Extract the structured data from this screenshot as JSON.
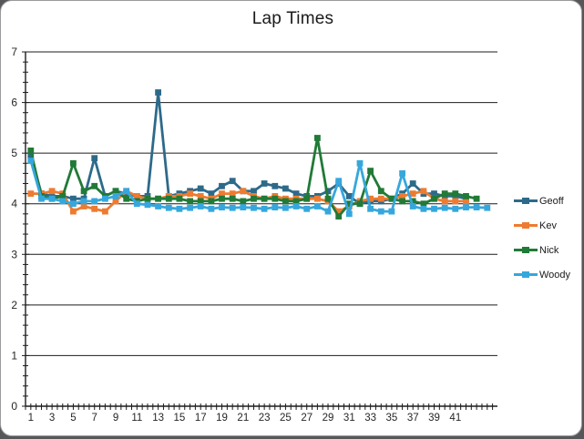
{
  "window": {
    "background_color": "#57575a",
    "card_color": "#ffffff"
  },
  "chart_data": {
    "type": "line",
    "title": "Lap Times",
    "xlabel": "",
    "ylabel": "",
    "ylim": [
      0,
      7
    ],
    "y_tick_labels": [
      "0",
      "1",
      "2",
      "3",
      "4",
      "5",
      "6",
      "7"
    ],
    "y_minor_step": 0.2,
    "x_tick_labels": [
      "1",
      "3",
      "5",
      "7",
      "9",
      "11",
      "13",
      "15",
      "17",
      "19",
      "21",
      "23",
      "25",
      "27",
      "29",
      "31",
      "33",
      "35",
      "37",
      "39",
      "41"
    ],
    "x_categories_max": 44,
    "grid": "horizontal-major",
    "grid_color": "#1c1c1c",
    "axis_color": "#1c1c1c",
    "tick_label_color": "#262626",
    "legend_position": "right",
    "series": [
      {
        "name": "Geoff",
        "color": "#2d6a8a",
        "values": [
          4.95,
          4.2,
          4.15,
          4.15,
          4.1,
          4.1,
          4.9,
          4.15,
          4.25,
          4.2,
          4.15,
          4.15,
          6.2,
          4.15,
          4.2,
          4.25,
          4.3,
          4.2,
          4.35,
          4.45,
          4.25,
          4.25,
          4.4,
          4.35,
          4.3,
          4.2,
          4.15,
          4.15,
          4.25,
          4.4,
          4.15,
          4.0,
          4.05,
          4.05,
          4.1,
          4.2,
          4.4,
          4.2,
          4.2,
          4.15,
          4.15,
          4.1
        ]
      },
      {
        "name": "Kev",
        "color": "#ee7b30",
        "values": [
          4.2,
          4.2,
          4.25,
          4.2,
          3.85,
          3.95,
          3.9,
          3.85,
          4.05,
          4.25,
          4.15,
          4.1,
          4.1,
          4.15,
          4.15,
          4.2,
          4.15,
          4.1,
          4.2,
          4.2,
          4.25,
          4.15,
          4.1,
          4.15,
          4.1,
          4.1,
          4.1,
          4.1,
          4.05,
          3.85,
          3.95,
          4.05,
          4.1,
          4.1,
          4.1,
          4.15,
          4.2,
          4.25,
          4.1,
          4.05,
          4.05,
          4.05
        ]
      },
      {
        "name": "Nick",
        "color": "#217a37",
        "values": [
          5.05,
          4.15,
          4.1,
          4.15,
          4.8,
          4.25,
          4.35,
          4.15,
          4.25,
          4.1,
          4.05,
          4.1,
          4.1,
          4.1,
          4.1,
          4.05,
          4.05,
          4.05,
          4.1,
          4.1,
          4.05,
          4.1,
          4.1,
          4.1,
          4.05,
          4.05,
          4.1,
          5.3,
          4.1,
          3.75,
          4.0,
          4.0,
          4.65,
          4.25,
          4.1,
          4.05,
          4.05,
          4.0,
          4.1,
          4.2,
          4.2,
          4.15,
          4.1
        ]
      },
      {
        "name": "Woody",
        "color": "#36a7dd",
        "values": [
          4.85,
          4.1,
          4.1,
          4.05,
          4.0,
          4.05,
          4.05,
          4.1,
          4.15,
          4.25,
          4.0,
          3.98,
          3.95,
          3.92,
          3.9,
          3.92,
          3.95,
          3.9,
          3.93,
          3.92,
          3.93,
          3.92,
          3.9,
          3.93,
          3.92,
          3.95,
          3.9,
          3.95,
          3.85,
          4.45,
          3.8,
          4.8,
          3.9,
          3.85,
          3.85,
          4.6,
          3.95,
          3.9,
          3.9,
          3.92,
          3.9,
          3.93,
          3.93,
          3.92
        ]
      }
    ]
  }
}
